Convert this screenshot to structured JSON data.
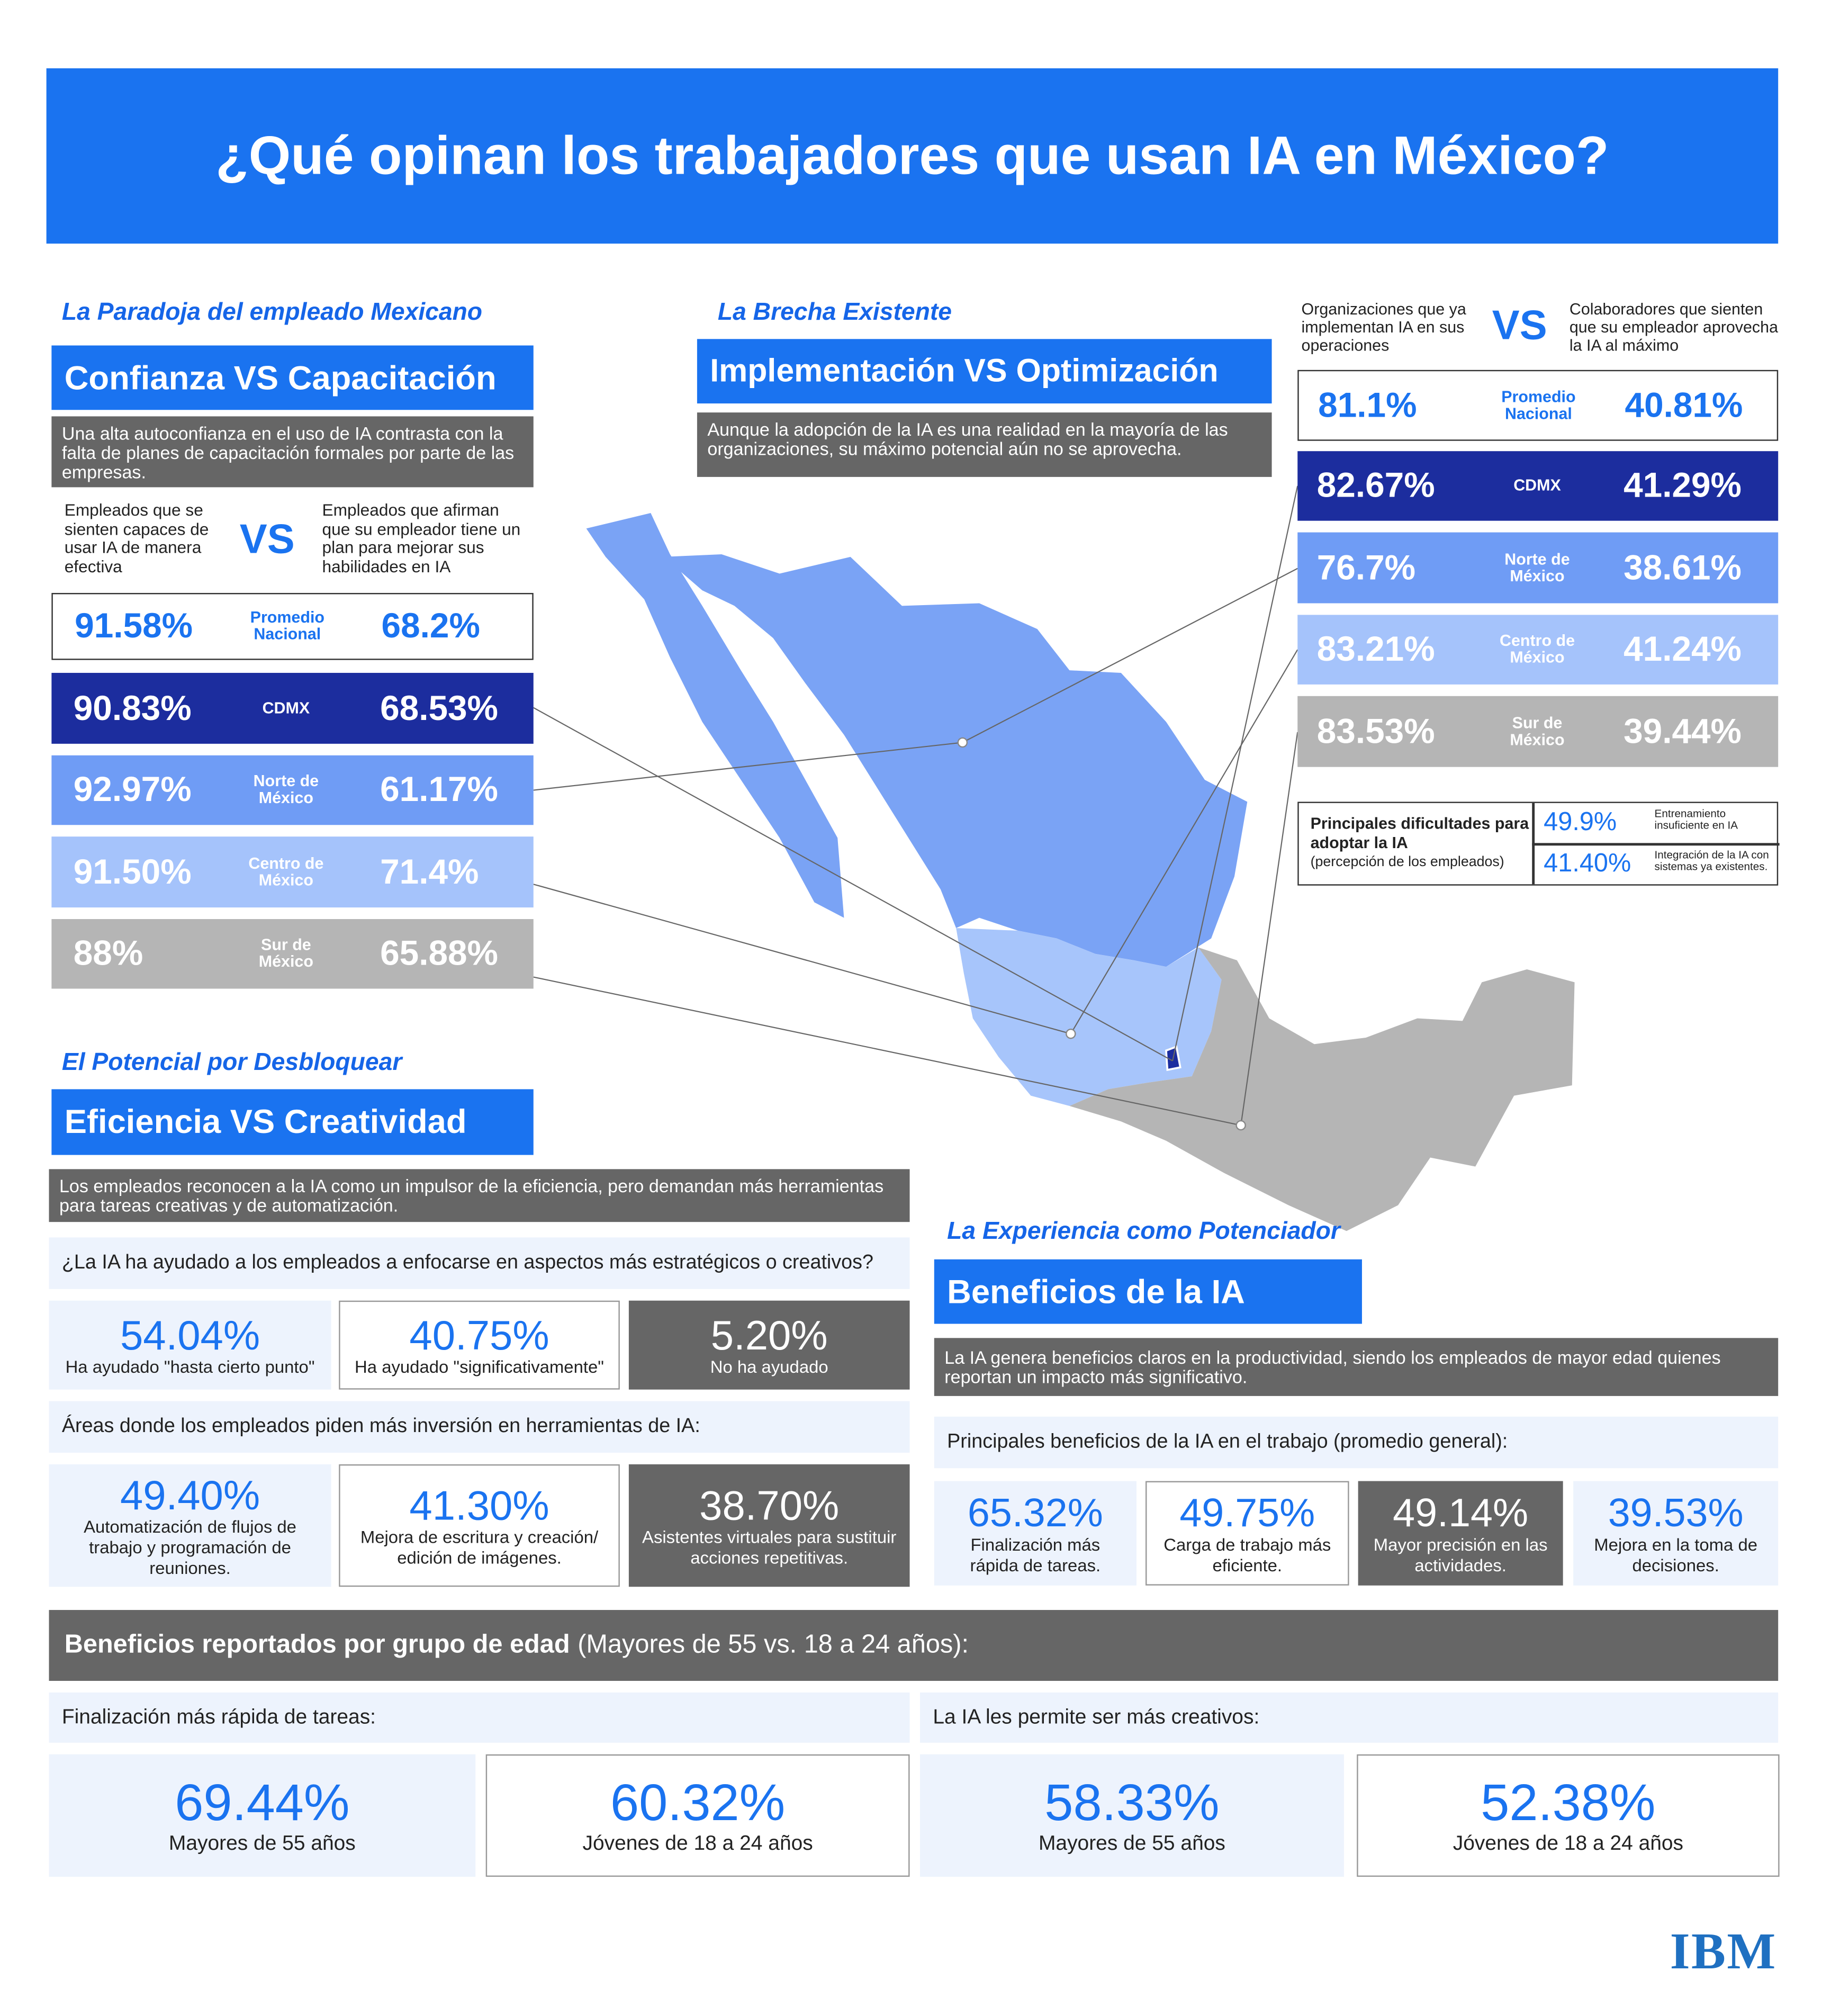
{
  "title": "¿Qué opinan los trabajadores que usan IA en México?",
  "paradoja": {
    "kicker": "La Paradoja del empleado Mexicano",
    "heading": "Confianza VS Capacitación",
    "description": "Una alta autoconfianza en el uso de IA contrasta con la falta de planes de capacitación formales por parte de las empresas.",
    "left_label": "Empleados que se sienten capaces de usar IA de manera efectiva",
    "vs": "VS",
    "right_label": "Empleados que afirman que su empleador tiene un plan para mejorar sus habilidades en IA",
    "rows": [
      {
        "left": "91.58%",
        "region": "Promedio Nacional",
        "right": "68.2%"
      },
      {
        "left": "90.83%",
        "region": "CDMX",
        "right": "68.53%"
      },
      {
        "left": "92.97%",
        "region": "Norte de México",
        "right": "61.17%"
      },
      {
        "left": "91.50%",
        "region": "Centro de México",
        "right": "71.4%"
      },
      {
        "left": "88%",
        "region": "Sur de México",
        "right": "65.88%"
      }
    ]
  },
  "brecha": {
    "kicker": "La Brecha Existente",
    "heading": "Implementación VS Optimización",
    "description": "Aunque la adopción de la IA es una realidad en la mayoría de las organizaciones, su máximo potencial aún no se aprovecha.",
    "left_label": "Organizaciones que ya implementan IA en sus operaciones",
    "vs": "VS",
    "right_label": "Colaboradores que sienten que su empleador aprovecha la IA al máximo",
    "rows": [
      {
        "left": "81.1%",
        "region": "Promedio Nacional",
        "right": "40.81%"
      },
      {
        "left": "82.67%",
        "region": "CDMX",
        "right": "41.29%"
      },
      {
        "left": "76.7%",
        "region": "Norte de México",
        "right": "38.61%"
      },
      {
        "left": "83.21%",
        "region": "Centro de México",
        "right": "41.24%"
      },
      {
        "left": "83.53%",
        "region": "Sur de México",
        "right": "39.44%"
      }
    ],
    "dificultades": {
      "title": "Principales dificultades para adoptar la IA",
      "note": "(percepción de los empleados)",
      "items": [
        {
          "value": "49.9%",
          "label": "Entrenamiento insuficiente en IA"
        },
        {
          "value": "41.40%",
          "label": "Integración de la IA con sistemas ya existentes."
        }
      ]
    }
  },
  "potencial": {
    "kicker": "El Potencial por Desbloquear",
    "heading": "Eficiencia VS Creatividad",
    "description": "Los empleados reconocen a la IA como un impulsor de la eficiencia, pero demandan más herramientas para tareas creativas y de automatización.",
    "question1": "¿La IA ha ayudado a los empleados a enfocarse en aspectos más estratégicos o creativos?",
    "answers1": [
      {
        "value": "54.04%",
        "label": "Ha ayudado \"hasta cierto punto\""
      },
      {
        "value": "40.75%",
        "label": "Ha ayudado \"significativamente\""
      },
      {
        "value": "5.20%",
        "label": "No ha ayudado"
      }
    ],
    "question2": "Áreas donde los empleados piden más inversión en herramientas de IA:",
    "answers2": [
      {
        "value": "49.40%",
        "label": "Automatización de flujos de trabajo y programación de reuniones."
      },
      {
        "value": "41.30%",
        "label": "Mejora de escritura y creación/ edición de imágenes."
      },
      {
        "value": "38.70%",
        "label": "Asistentes virtuales para sustituir acciones repetitivas."
      }
    ]
  },
  "experiencia": {
    "kicker": "La Experiencia como Potenciador",
    "heading": "Beneficios de la IA",
    "description": "La IA genera beneficios claros en la productividad, siendo los empleados de mayor edad quienes reportan un impacto más significativo.",
    "question": "Principales beneficios de la IA en el trabajo (promedio general):",
    "benefits": [
      {
        "value": "65.32%",
        "label": "Finalización más rápida de tareas."
      },
      {
        "value": "49.75%",
        "label": "Carga de trabajo más eficiente."
      },
      {
        "value": "49.14%",
        "label": "Mayor precisión en las actividades."
      },
      {
        "value": "39.53%",
        "label": "Mejora en la toma de decisiones."
      }
    ]
  },
  "edad": {
    "heading_bold": "Beneficios reportados por grupo de edad",
    "heading_rest": "(Mayores de 55 vs. 18 a 24 años):",
    "groups": [
      {
        "title": "Finalización más rápida de tareas:",
        "items": [
          {
            "value": "69.44%",
            "label": "Mayores de 55 años"
          },
          {
            "value": "60.32%",
            "label": "Jóvenes de 18 a 24 años"
          }
        ]
      },
      {
        "title": "La IA les permite ser más creativos:",
        "items": [
          {
            "value": "58.33%",
            "label": "Mayores de 55 años"
          },
          {
            "value": "52.38%",
            "label": "Jóvenes de 18 a 24 años"
          }
        ]
      }
    ]
  },
  "logo": "IBM"
}
